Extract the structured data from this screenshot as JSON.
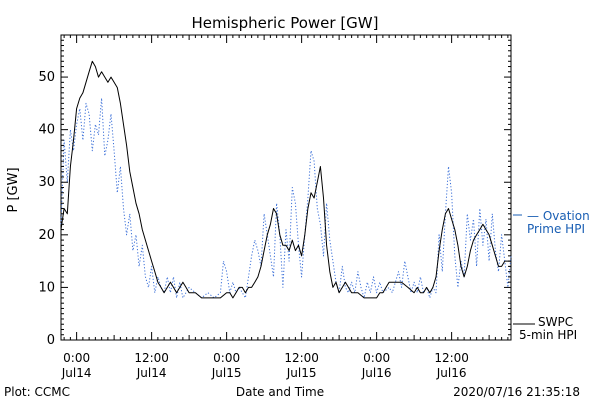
{
  "chart_data": {
    "type": "line",
    "title": "Hemispheric Power [GW]",
    "xlabel": "Date and Time",
    "ylabel": "P [GW]",
    "ylim": [
      0,
      58
    ],
    "xlim": [
      -2.5,
      69.5
    ],
    "y_ticks": [
      0,
      10,
      20,
      30,
      40,
      50
    ],
    "x_ticks": [
      {
        "hour": 0,
        "time": "0:00",
        "date": "Jul14"
      },
      {
        "hour": 12,
        "time": "12:00",
        "date": "Jul14"
      },
      {
        "hour": 24,
        "time": "0:00",
        "date": "Jul15"
      },
      {
        "hour": 36,
        "time": "12:00",
        "date": "Jul15"
      },
      {
        "hour": 48,
        "time": "0:00",
        "date": "Jul16"
      },
      {
        "hour": 60,
        "time": "12:00",
        "date": "Jul16"
      }
    ],
    "grid": false,
    "series": [
      {
        "name": "Ovation Prime HPI",
        "style": "dotted",
        "color": "#3a6fd8",
        "points": [
          [
            -2.5,
            22
          ],
          [
            -2,
            38
          ],
          [
            -1.5,
            30
          ],
          [
            -1,
            40
          ],
          [
            -0.5,
            36
          ],
          [
            0,
            41
          ],
          [
            0.5,
            44
          ],
          [
            1,
            38
          ],
          [
            1.5,
            45
          ],
          [
            2,
            43
          ],
          [
            2.5,
            36
          ],
          [
            3,
            41
          ],
          [
            3.5,
            39
          ],
          [
            4,
            46
          ],
          [
            4.5,
            35
          ],
          [
            5,
            38
          ],
          [
            5.5,
            43
          ],
          [
            6,
            36
          ],
          [
            6.5,
            28
          ],
          [
            7,
            33
          ],
          [
            7.5,
            25
          ],
          [
            8,
            20
          ],
          [
            8.5,
            24
          ],
          [
            9,
            17
          ],
          [
            9.5,
            20
          ],
          [
            10,
            14
          ],
          [
            10.5,
            18
          ],
          [
            11,
            12
          ],
          [
            11.5,
            10
          ],
          [
            12,
            14
          ],
          [
            12.5,
            9
          ],
          [
            13,
            12
          ],
          [
            13.5,
            10
          ],
          [
            14,
            9
          ],
          [
            14.5,
            12
          ],
          [
            15,
            9
          ],
          [
            15.5,
            12
          ],
          [
            16,
            8
          ],
          [
            16.5,
            11
          ],
          [
            17,
            8
          ],
          [
            18,
            10
          ],
          [
            19,
            9
          ],
          [
            20,
            8
          ],
          [
            21,
            9
          ],
          [
            22,
            8
          ],
          [
            23,
            9
          ],
          [
            23.5,
            15
          ],
          [
            24,
            13
          ],
          [
            24.5,
            9
          ],
          [
            25,
            11
          ],
          [
            25.5,
            9
          ],
          [
            26,
            10
          ],
          [
            27,
            8
          ],
          [
            27.5,
            12
          ],
          [
            28,
            16
          ],
          [
            28.5,
            19
          ],
          [
            29,
            17
          ],
          [
            29.5,
            14
          ],
          [
            30,
            24
          ],
          [
            30.5,
            20
          ],
          [
            31,
            16
          ],
          [
            31.5,
            12
          ],
          [
            32,
            26
          ],
          [
            32.5,
            20
          ],
          [
            33,
            10
          ],
          [
            33.5,
            21
          ],
          [
            34,
            15
          ],
          [
            34.5,
            29
          ],
          [
            35,
            26
          ],
          [
            35.5,
            18
          ],
          [
            36,
            12
          ],
          [
            36.5,
            20
          ],
          [
            37,
            27
          ],
          [
            37.5,
            36
          ],
          [
            38,
            34
          ],
          [
            38.5,
            25
          ],
          [
            39,
            22
          ],
          [
            39.5,
            16
          ],
          [
            40,
            26
          ],
          [
            40.5,
            19
          ],
          [
            41,
            15
          ],
          [
            41.5,
            11
          ],
          [
            42,
            9
          ],
          [
            42.5,
            14
          ],
          [
            43,
            10
          ],
          [
            43.5,
            9
          ],
          [
            44,
            11
          ],
          [
            44.5,
            9
          ],
          [
            45,
            13
          ],
          [
            45.5,
            10
          ],
          [
            46,
            8
          ],
          [
            46.5,
            11
          ],
          [
            47,
            9
          ],
          [
            47.5,
            12
          ],
          [
            48,
            9
          ],
          [
            48.5,
            11
          ],
          [
            49,
            9
          ],
          [
            50,
            10
          ],
          [
            50.5,
            9
          ],
          [
            51,
            11
          ],
          [
            51.5,
            13
          ],
          [
            52,
            10
          ],
          [
            52.5,
            15
          ],
          [
            53,
            12
          ],
          [
            53.5,
            9
          ],
          [
            54,
            11
          ],
          [
            54.5,
            9
          ],
          [
            55,
            12
          ],
          [
            55.5,
            9
          ],
          [
            56,
            10
          ],
          [
            56.5,
            8
          ],
          [
            57,
            10
          ],
          [
            57.5,
            9
          ],
          [
            58,
            20
          ],
          [
            58.5,
            13
          ],
          [
            59,
            24
          ],
          [
            59.5,
            33
          ],
          [
            60,
            28
          ],
          [
            60.5,
            16
          ],
          [
            61,
            10
          ],
          [
            61.5,
            15
          ],
          [
            62,
            12
          ],
          [
            62.5,
            24
          ],
          [
            63,
            19
          ],
          [
            63.5,
            23
          ],
          [
            64,
            14
          ],
          [
            64.5,
            25
          ],
          [
            65,
            18
          ],
          [
            65.5,
            23
          ],
          [
            66,
            15
          ],
          [
            66.5,
            24
          ],
          [
            67,
            17
          ],
          [
            67.5,
            13
          ],
          [
            68,
            20
          ],
          [
            68.5,
            15
          ],
          [
            69,
            10
          ],
          [
            69.5,
            16
          ]
        ]
      },
      {
        "name": "SWPC 5-min HPI",
        "style": "solid",
        "color": "#000000",
        "points": [
          [
            -2.5,
            21
          ],
          [
            -2,
            25
          ],
          [
            -1.5,
            24
          ],
          [
            -1,
            33
          ],
          [
            -0.5,
            38
          ],
          [
            0,
            44
          ],
          [
            0.5,
            46
          ],
          [
            1,
            47
          ],
          [
            1.5,
            49
          ],
          [
            2,
            51
          ],
          [
            2.5,
            53
          ],
          [
            3,
            52
          ],
          [
            3.5,
            50
          ],
          [
            4,
            51
          ],
          [
            4.5,
            50
          ],
          [
            5,
            49
          ],
          [
            5.5,
            50
          ],
          [
            6,
            49
          ],
          [
            6.5,
            48
          ],
          [
            7,
            45
          ],
          [
            7.5,
            41
          ],
          [
            8,
            37
          ],
          [
            8.5,
            32
          ],
          [
            9,
            29
          ],
          [
            9.5,
            26
          ],
          [
            10,
            24
          ],
          [
            10.5,
            21
          ],
          [
            11,
            19
          ],
          [
            11.5,
            17
          ],
          [
            12,
            15
          ],
          [
            12.5,
            13
          ],
          [
            13,
            11
          ],
          [
            13.5,
            10
          ],
          [
            14,
            9
          ],
          [
            14.5,
            10
          ],
          [
            15,
            11
          ],
          [
            15.5,
            10
          ],
          [
            16,
            9
          ],
          [
            16.5,
            10
          ],
          [
            17,
            11
          ],
          [
            17.5,
            10
          ],
          [
            18,
            9
          ],
          [
            19,
            9
          ],
          [
            20,
            8
          ],
          [
            21,
            8
          ],
          [
            22,
            8
          ],
          [
            23,
            8
          ],
          [
            24,
            9
          ],
          [
            24.5,
            9
          ],
          [
            25,
            8
          ],
          [
            25.5,
            9
          ],
          [
            26,
            10
          ],
          [
            26.5,
            10
          ],
          [
            27,
            9
          ],
          [
            27.5,
            10
          ],
          [
            28,
            10
          ],
          [
            28.5,
            11
          ],
          [
            29,
            12
          ],
          [
            29.5,
            14
          ],
          [
            30,
            17
          ],
          [
            30.5,
            20
          ],
          [
            31,
            22
          ],
          [
            31.5,
            25
          ],
          [
            32,
            24
          ],
          [
            32.5,
            20
          ],
          [
            33,
            18
          ],
          [
            33.5,
            18
          ],
          [
            34,
            17
          ],
          [
            34.5,
            19
          ],
          [
            35,
            17
          ],
          [
            35.5,
            18
          ],
          [
            36,
            16
          ],
          [
            36.5,
            20
          ],
          [
            37,
            25
          ],
          [
            37.5,
            28
          ],
          [
            38,
            27
          ],
          [
            38.5,
            30
          ],
          [
            39,
            33
          ],
          [
            39.5,
            27
          ],
          [
            40,
            18
          ],
          [
            40.5,
            13
          ],
          [
            41,
            10
          ],
          [
            41.5,
            11
          ],
          [
            42,
            9
          ],
          [
            42.5,
            10
          ],
          [
            43,
            11
          ],
          [
            43.5,
            10
          ],
          [
            44,
            9
          ],
          [
            45,
            9
          ],
          [
            46,
            8
          ],
          [
            47,
            8
          ],
          [
            48,
            8
          ],
          [
            48.5,
            9
          ],
          [
            49,
            9
          ],
          [
            49.5,
            10
          ],
          [
            50,
            11
          ],
          [
            51,
            11
          ],
          [
            52,
            11
          ],
          [
            53,
            10
          ],
          [
            54,
            9
          ],
          [
            54.5,
            10
          ],
          [
            55,
            9
          ],
          [
            55.5,
            9
          ],
          [
            56,
            10
          ],
          [
            56.5,
            9
          ],
          [
            57,
            10
          ],
          [
            57.5,
            12
          ],
          [
            58,
            17
          ],
          [
            58.5,
            21
          ],
          [
            59,
            24
          ],
          [
            59.5,
            25
          ],
          [
            60,
            23
          ],
          [
            60.5,
            21
          ],
          [
            61,
            18
          ],
          [
            61.5,
            14
          ],
          [
            62,
            12
          ],
          [
            62.5,
            14
          ],
          [
            63,
            17
          ],
          [
            63.5,
            19
          ],
          [
            64,
            20
          ],
          [
            64.5,
            21
          ],
          [
            65,
            22
          ],
          [
            65.5,
            21
          ],
          [
            66,
            20
          ],
          [
            66.5,
            18
          ],
          [
            67,
            16
          ],
          [
            67.5,
            14
          ],
          [
            68,
            14
          ],
          [
            68.5,
            15
          ],
          [
            69,
            15
          ],
          [
            69.5,
            15
          ]
        ]
      }
    ],
    "legend": [
      {
        "line1": "— Ovation",
        "line2": "Prime HPI",
        "color": "#1a5fb4"
      },
      {
        "line1": "SWPC",
        "line2": "5-min HPI",
        "color": "#000000"
      }
    ]
  },
  "footer": {
    "left": "Plot: CCMC",
    "right": "2020/07/16 21:35:18"
  }
}
